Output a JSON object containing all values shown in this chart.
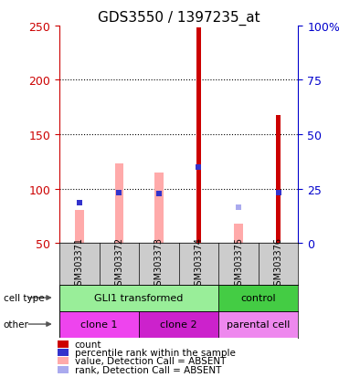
{
  "title": "GDS3550 / 1397235_at",
  "samples": [
    "GSM303371",
    "GSM303372",
    "GSM303373",
    "GSM303374",
    "GSM303375",
    "GSM303376"
  ],
  "count_values": [
    null,
    null,
    null,
    248,
    null,
    168
  ],
  "count_color": "#cc0000",
  "pink_bar_values": [
    80,
    123,
    115,
    null,
    68,
    null
  ],
  "pink_bar_color": "#ffaaaa",
  "blue_square_values": [
    87,
    96,
    95,
    120,
    null,
    96
  ],
  "blue_square_color": "#3333cc",
  "light_blue_square_values": [
    null,
    null,
    null,
    null,
    83,
    null
  ],
  "light_blue_square_color": "#aaaaee",
  "ylim_left": [
    50,
    250
  ],
  "left_ticks": [
    50,
    100,
    150,
    200,
    250
  ],
  "right_ticks": [
    0,
    25,
    50,
    75,
    100
  ],
  "right_tick_labels": [
    "0",
    "25",
    "50",
    "75",
    "100%"
  ],
  "left_tick_color": "#cc0000",
  "right_tick_color": "#0000cc",
  "sample_label_fontsize": 7,
  "bg_color": "#cccccc",
  "plot_bg_color": "#ffffff",
  "cell_groups": [
    {
      "start": 0,
      "end": 4,
      "label": "GLI1 transformed",
      "color": "#99ee99"
    },
    {
      "start": 4,
      "end": 6,
      "label": "control",
      "color": "#44cc44"
    }
  ],
  "other_groups": [
    {
      "start": 0,
      "end": 2,
      "label": "clone 1",
      "color": "#ee44ee"
    },
    {
      "start": 2,
      "end": 4,
      "label": "clone 2",
      "color": "#cc22cc"
    },
    {
      "start": 4,
      "end": 6,
      "label": "parental cell",
      "color": "#ee88ee"
    }
  ],
  "legend_colors": [
    "#cc0000",
    "#3333cc",
    "#ffaaaa",
    "#aaaaee"
  ],
  "legend_labels": [
    "count",
    "percentile rank within the sample",
    "value, Detection Call = ABSENT",
    "rank, Detection Call = ABSENT"
  ]
}
